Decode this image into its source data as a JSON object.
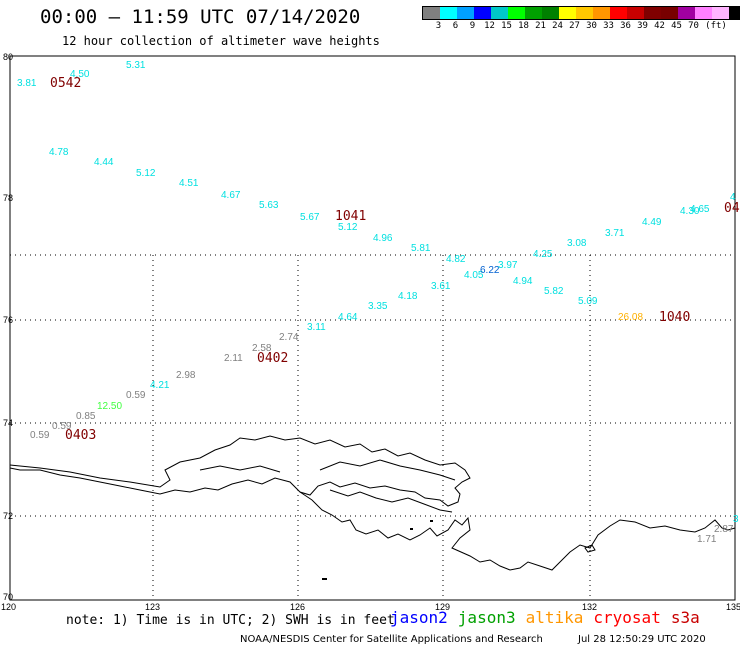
{
  "title": "00:00 – 11:59 UTC 07/14/2020",
  "subtitle": "12 hour collection of altimeter wave heights",
  "legend": {
    "unit": "(ft)",
    "swatch_colors": [
      "#808080",
      "#00ffff",
      "#00a0ff",
      "#0000ff",
      "#00c8c8",
      "#00ff00",
      "#00a000",
      "#008000",
      "#ffff00",
      "#ffc800",
      "#ff9600",
      "#ff0000",
      "#c80000",
      "#800000",
      "#780000",
      "#a000a0",
      "#ff80ff",
      "#ffb4ff",
      "#000000"
    ],
    "labels": [
      "3",
      "6",
      "9",
      "12",
      "15",
      "18",
      "21",
      "24",
      "27",
      "30",
      "33",
      "36",
      "39",
      "42",
      "45",
      "70"
    ]
  },
  "axes": {
    "lat_labels": [
      "80",
      "78",
      "76",
      "74",
      "72",
      "70"
    ],
    "lon_labels": [
      "120",
      "123",
      "126",
      "129",
      "132",
      "135"
    ]
  },
  "readings": [
    {
      "text": "3.81",
      "color": "#00e0e0"
    },
    {
      "text": "4.50",
      "color": "#00e0e0"
    },
    {
      "text": "5.31",
      "color": "#00e0e0"
    },
    {
      "text": "4.78",
      "color": "#00e0e0"
    },
    {
      "text": "4.44",
      "color": "#00e0e0"
    },
    {
      "text": "5.12",
      "color": "#00e0e0"
    },
    {
      "text": "4.51",
      "color": "#00e0e0"
    },
    {
      "text": "4.67",
      "color": "#00e0e0"
    },
    {
      "text": "5.63",
      "color": "#00e0e0"
    },
    {
      "text": "5.67",
      "color": "#00e0e0"
    },
    {
      "text": "5.12",
      "color": "#00e0e0"
    },
    {
      "text": "4.96",
      "color": "#00e0e0"
    },
    {
      "text": "5.81",
      "color": "#00e0e0"
    },
    {
      "text": "4.82",
      "color": "#00e0e0"
    },
    {
      "text": "4.05",
      "color": "#00e0e0"
    },
    {
      "text": "6.22",
      "color": "#0060d0"
    },
    {
      "text": "3.97",
      "color": "#00e0e0"
    },
    {
      "text": "4.94",
      "color": "#00e0e0"
    },
    {
      "text": "4.25",
      "color": "#00e0e0"
    },
    {
      "text": "3.08",
      "color": "#00e0e0"
    },
    {
      "text": "3.71",
      "color": "#00e0e0"
    },
    {
      "text": "4.49",
      "color": "#00e0e0"
    },
    {
      "text": "4.30",
      "color": "#00e0e0"
    },
    {
      "text": "4.65",
      "color": "#00e0e0"
    },
    {
      "text": "4",
      "color": "#00e0e0"
    },
    {
      "text": "5.82",
      "color": "#00e0e0"
    },
    {
      "text": "5.09",
      "color": "#00e0e0"
    },
    {
      "text": "3.61",
      "color": "#00e0e0"
    },
    {
      "text": "4.18",
      "color": "#00e0e0"
    },
    {
      "text": "3.35",
      "color": "#00e0e0"
    },
    {
      "text": "4.64",
      "color": "#00e0e0"
    },
    {
      "text": "3.11",
      "color": "#00e0e0"
    },
    {
      "text": "2.74",
      "color": "#808080"
    },
    {
      "text": "2.58",
      "color": "#808080"
    },
    {
      "text": "2.11",
      "color": "#808080"
    },
    {
      "text": "2.98",
      "color": "#808080"
    },
    {
      "text": "4.21",
      "color": "#00e0e0"
    },
    {
      "text": "0.59",
      "color": "#808080"
    },
    {
      "text": "12.50",
      "color": "#40ff40"
    },
    {
      "text": "0.85",
      "color": "#808080"
    },
    {
      "text": "0.59",
      "color": "#808080"
    },
    {
      "text": "0.59",
      "color": "#808080"
    },
    {
      "text": "26.08",
      "color": "#ffb000"
    },
    {
      "text": "2.87",
      "color": "#808080"
    },
    {
      "text": "1.71",
      "color": "#808080"
    },
    {
      "text": "3",
      "color": "#00e0e0"
    }
  ],
  "pass_times": [
    {
      "text": "0542",
      "color": "#800000"
    },
    {
      "text": "1041",
      "color": "#800000"
    },
    {
      "text": "0402",
      "color": "#800000"
    },
    {
      "text": "0403",
      "color": "#800000"
    },
    {
      "text": "1040",
      "color": "#800000"
    },
    {
      "text": "04",
      "color": "#800000"
    }
  ],
  "note": "note: 1) Time is in UTC; 2) SWH is in feet",
  "satellites": [
    {
      "name": "jason2",
      "color": "#0000ff"
    },
    {
      "name": "jason3",
      "color": "#00a000"
    },
    {
      "name": "altika",
      "color": "#ff9600"
    },
    {
      "name": "cryosat",
      "color": "#ff0000"
    },
    {
      "name": "s3a",
      "color": "#c80000"
    }
  ],
  "credit": "NOAA/NESDIS Center for Satellite Applications and Research",
  "generated": "Jul 28 12:50:29 UTC 2020"
}
